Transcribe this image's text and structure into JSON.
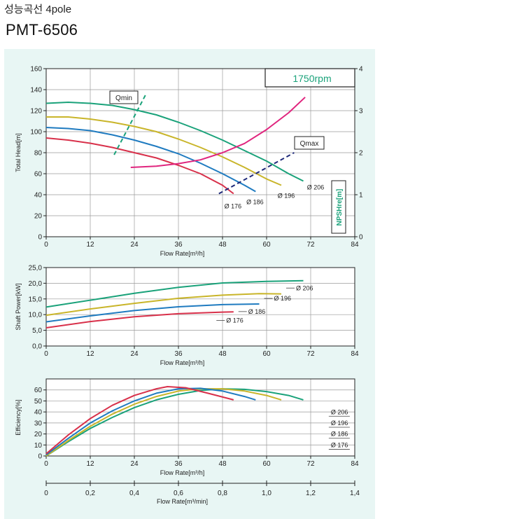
{
  "page": {
    "title_korean": "성능곡선",
    "title_pole": "4pole",
    "model": "PMT-6506",
    "rpm_label": "1750rpm",
    "qmin_label": "Qmin",
    "qmax_label": "Qmax"
  },
  "colors": {
    "d206": "#1aa27a",
    "d196": "#c9b52a",
    "d186": "#1f7bc0",
    "d176": "#d8304a",
    "npsh": "#e0257e",
    "qmin": "#1aa27a",
    "qmax": "#1f2a7a",
    "panel_bg": "#e8f6f4",
    "nps_label": "#1aa27a"
  },
  "chart_data": [
    {
      "type": "line",
      "name": "head",
      "xlabel": "Flow Rate[m³/h]",
      "ylabel": "Total Head[m]",
      "y2label": "NPSHre[m]",
      "xlim": [
        0,
        84
      ],
      "ylim": [
        0,
        160
      ],
      "y2lim": [
        0,
        4
      ],
      "xticks": [
        "0",
        "12",
        "24",
        "36",
        "48",
        "60",
        "72",
        "84"
      ],
      "yticks": [
        "0",
        "20",
        "40",
        "60",
        "80",
        "100",
        "120",
        "140",
        "160"
      ],
      "y2ticks": [
        "0",
        "1",
        "2",
        "3",
        "4"
      ],
      "grid": true,
      "series": [
        {
          "name": "Ø 206",
          "color_key": "d206",
          "x": [
            0,
            6,
            12,
            18,
            24,
            30,
            36,
            42,
            48,
            54,
            60,
            66,
            70
          ],
          "y": [
            127,
            128,
            127,
            125,
            121,
            116,
            109,
            101,
            92,
            82,
            72,
            60,
            53
          ]
        },
        {
          "name": "Ø 196",
          "color_key": "d196",
          "x": [
            0,
            6,
            12,
            18,
            24,
            30,
            36,
            42,
            48,
            54,
            60,
            64
          ],
          "y": [
            114,
            114,
            112,
            109,
            105,
            100,
            93,
            85,
            76,
            66,
            55,
            49
          ]
        },
        {
          "name": "Ø 186",
          "color_key": "d186",
          "x": [
            0,
            6,
            12,
            18,
            24,
            30,
            36,
            42,
            48,
            54,
            57
          ],
          "y": [
            104,
            103,
            101,
            97,
            92,
            86,
            79,
            70,
            60,
            49,
            43
          ]
        },
        {
          "name": "Ø 176",
          "color_key": "d176",
          "x": [
            0,
            6,
            12,
            18,
            24,
            30,
            36,
            42,
            48,
            51
          ],
          "y": [
            94,
            92,
            89,
            85,
            80,
            75,
            68,
            60,
            49,
            41
          ]
        },
        {
          "name": "NPSHre",
          "color_key": "npsh",
          "axis": "y2",
          "x": [
            23,
            30,
            36,
            42,
            48,
            54,
            60,
            66,
            70.5
          ],
          "y": [
            1.65,
            1.68,
            1.74,
            1.83,
            2.0,
            2.22,
            2.55,
            2.95,
            3.32
          ]
        }
      ],
      "qmin_line": {
        "x": [
          18.5,
          27.2
        ],
        "y": [
          78,
          136
        ]
      },
      "qmax_line": {
        "x": [
          47,
          67.5
        ],
        "y": [
          41,
          80
        ]
      },
      "labels": [
        {
          "text": "Ø 206",
          "x": 71,
          "y": 45
        },
        {
          "text": "Ø 196",
          "x": 63,
          "y": 37
        },
        {
          "text": "Ø 186",
          "x": 54.5,
          "y": 31
        },
        {
          "text": "Ø 176",
          "x": 48.5,
          "y": 27
        }
      ]
    },
    {
      "type": "line",
      "name": "power",
      "xlabel": "Flow Rate[m³/h]",
      "ylabel": "Shaft Power[kW]",
      "xlim": [
        0,
        84
      ],
      "ylim": [
        0,
        25
      ],
      "xticks": [
        "0",
        "12",
        "24",
        "36",
        "48",
        "60",
        "72",
        "84"
      ],
      "yticks": [
        "0,0",
        "5,0",
        "10,0",
        "15,0",
        "20,0",
        "25,0"
      ],
      "grid": true,
      "series": [
        {
          "name": "Ø 206",
          "color_key": "d206",
          "x": [
            0,
            12,
            24,
            36,
            48,
            60,
            70
          ],
          "y": [
            12.4,
            14.6,
            16.8,
            18.7,
            20.1,
            20.6,
            20.8
          ]
        },
        {
          "name": "Ø 196",
          "color_key": "d196",
          "x": [
            0,
            12,
            24,
            36,
            48,
            58,
            64
          ],
          "y": [
            9.8,
            11.8,
            13.6,
            15.2,
            16.2,
            16.7,
            16.6
          ]
        },
        {
          "name": "Ø 186",
          "color_key": "d186",
          "x": [
            0,
            12,
            24,
            36,
            48,
            58
          ],
          "y": [
            7.7,
            9.6,
            11.3,
            12.5,
            13.2,
            13.4
          ]
        },
        {
          "name": "Ø 176",
          "color_key": "d176",
          "x": [
            0,
            12,
            24,
            36,
            48,
            51
          ],
          "y": [
            5.8,
            7.8,
            9.3,
            10.3,
            10.8,
            10.9
          ]
        }
      ],
      "labels": [
        {
          "text": "Ø 206",
          "x": 68,
          "y": 17.8
        },
        {
          "text": "Ø 196",
          "x": 62,
          "y": 14.5
        },
        {
          "text": "Ø 186",
          "x": 55,
          "y": 10.3
        },
        {
          "text": "Ø 176",
          "x": 49,
          "y": 7.5
        }
      ]
    },
    {
      "type": "line",
      "name": "efficiency",
      "xlabel": "Flow Rate[m³/h]",
      "ylabel": "Efficiency[%]",
      "xlim": [
        0,
        84
      ],
      "ylim": [
        0,
        70
      ],
      "xticks": [
        "0",
        "12",
        "24",
        "36",
        "48",
        "60",
        "72",
        "84"
      ],
      "yticks": [
        "0",
        "10",
        "20",
        "30",
        "40",
        "50",
        "60"
      ],
      "grid": true,
      "series": [
        {
          "name": "Ø 206",
          "color_key": "d206",
          "x": [
            0,
            6,
            12,
            18,
            24,
            30,
            36,
            42,
            48,
            54,
            60,
            66,
            70
          ],
          "y": [
            0,
            13,
            25,
            35,
            44,
            51,
            56,
            59.5,
            61,
            60.5,
            58.5,
            55,
            51
          ]
        },
        {
          "name": "Ø 196",
          "color_key": "d196",
          "x": [
            0,
            6,
            12,
            18,
            24,
            30,
            36,
            42,
            48,
            54,
            60,
            64
          ],
          "y": [
            0,
            14,
            27,
            38,
            47,
            54,
            59,
            61,
            61,
            59,
            55,
            51
          ]
        },
        {
          "name": "Ø 186",
          "color_key": "d186",
          "x": [
            0,
            6,
            12,
            18,
            24,
            30,
            36,
            42,
            48,
            54,
            57
          ],
          "y": [
            1,
            16,
            30,
            41,
            50,
            57,
            61,
            61.5,
            59,
            54,
            51
          ]
        },
        {
          "name": "Ø 176",
          "color_key": "d176",
          "x": [
            0,
            6,
            12,
            18,
            24,
            30,
            33,
            38,
            44,
            51
          ],
          "y": [
            2,
            19,
            34,
            46,
            55,
            61,
            63,
            62,
            57,
            51
          ]
        }
      ],
      "labels": [
        {
          "text": "Ø 206",
          "x": 77.5,
          "y": 38
        },
        {
          "text": "Ø 196",
          "x": 77.5,
          "y": 28
        },
        {
          "text": "Ø 186",
          "x": 77.5,
          "y": 18
        },
        {
          "text": "Ø 176",
          "x": 77.5,
          "y": 8
        }
      ]
    },
    {
      "type": "axis",
      "name": "flow_m3min",
      "xlabel": "Flow Rate[m³/min]",
      "xlim": [
        0,
        1.4
      ],
      "xticks": [
        "0",
        "0,2",
        "0,4",
        "0,6",
        "0,8",
        "1,0",
        "1,2",
        "1,4"
      ]
    }
  ]
}
